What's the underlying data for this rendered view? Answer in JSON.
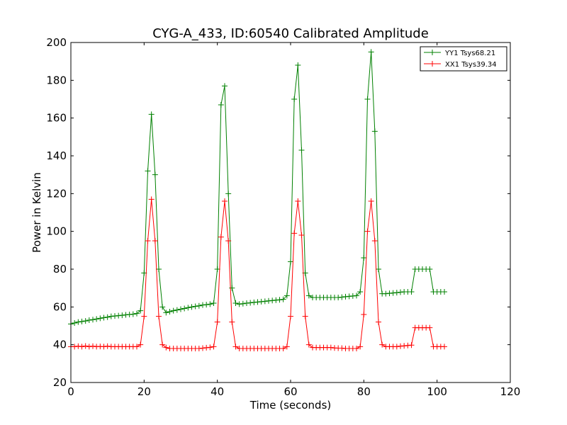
{
  "chart_data": {
    "type": "line",
    "title": "CYG-A_433, ID:60540 Calibrated Amplitude",
    "xlabel": "Time (seconds)",
    "ylabel": "Power in Kelvin",
    "xlim": [
      0,
      120
    ],
    "ylim": [
      20,
      200
    ],
    "xticks": [
      0,
      20,
      40,
      60,
      80,
      100,
      120
    ],
    "yticks": [
      20,
      40,
      60,
      80,
      100,
      120,
      140,
      160,
      180,
      200
    ],
    "grid": false,
    "legend_position": "top-right",
    "marker": "+",
    "series": [
      {
        "name": "YY1 Tsys68.21",
        "color": "#008000",
        "x": [
          0,
          1,
          2,
          3,
          4,
          5,
          6,
          7,
          8,
          9,
          10,
          11,
          12,
          13,
          14,
          15,
          16,
          17,
          18,
          19,
          20,
          21,
          22,
          23,
          24,
          25,
          26,
          27,
          28,
          29,
          30,
          31,
          32,
          33,
          34,
          35,
          36,
          37,
          38,
          39,
          40,
          41,
          42,
          43,
          44,
          45,
          46,
          47,
          48,
          49,
          50,
          51,
          52,
          53,
          54,
          55,
          56,
          57,
          58,
          59,
          60,
          61,
          62,
          63,
          64,
          65,
          66,
          67,
          68,
          69,
          70,
          71,
          72,
          73,
          74,
          75,
          76,
          77,
          78,
          79,
          80,
          81,
          82,
          83,
          84,
          85,
          86,
          87,
          88,
          89,
          90,
          91,
          92,
          93,
          94,
          95,
          96,
          97,
          98,
          99,
          100,
          101,
          102
        ],
        "y": [
          51,
          51.5,
          52,
          52.3,
          52.6,
          53,
          53.3,
          53.6,
          54,
          54.3,
          54.6,
          55,
          55.2,
          55.4,
          55.6,
          55.8,
          56,
          56.2,
          56.5,
          58,
          78,
          132,
          162,
          130,
          80,
          60,
          57,
          57.5,
          58,
          58.4,
          58.8,
          59.2,
          59.6,
          60,
          60.3,
          60.6,
          61,
          61.2,
          61.5,
          62,
          80,
          167,
          177,
          120,
          70,
          62,
          61.5,
          61.7,
          62,
          62.2,
          62.4,
          62.6,
          62.8,
          63,
          63.2,
          63.4,
          63.6,
          63.8,
          64,
          66,
          84,
          170,
          188,
          143,
          78,
          66,
          65,
          65,
          65,
          65,
          65,
          65,
          65,
          65,
          65.2,
          65.4,
          65.6,
          65.8,
          66,
          68,
          86,
          170,
          195,
          153,
          80,
          67,
          67,
          67.2,
          67.4,
          67.6,
          67.8,
          68,
          68,
          68,
          80,
          80,
          80,
          80,
          80,
          68,
          68,
          68,
          68
        ]
      },
      {
        "name": "XX1 Tsys39.34",
        "color": "#ff0000",
        "x": [
          0,
          1,
          2,
          3,
          4,
          5,
          6,
          7,
          8,
          9,
          10,
          11,
          12,
          13,
          14,
          15,
          16,
          17,
          18,
          19,
          20,
          21,
          22,
          23,
          24,
          25,
          26,
          27,
          28,
          29,
          30,
          31,
          32,
          33,
          34,
          35,
          36,
          37,
          38,
          39,
          40,
          41,
          42,
          43,
          44,
          45,
          46,
          47,
          48,
          49,
          50,
          51,
          52,
          53,
          54,
          55,
          56,
          57,
          58,
          59,
          60,
          61,
          62,
          63,
          64,
          65,
          66,
          67,
          68,
          69,
          70,
          71,
          72,
          73,
          74,
          75,
          76,
          77,
          78,
          79,
          80,
          81,
          82,
          83,
          84,
          85,
          86,
          87,
          88,
          89,
          90,
          91,
          92,
          93,
          94,
          95,
          96,
          97,
          98,
          99,
          100,
          101,
          102
        ],
        "y": [
          39,
          39,
          39.2,
          39,
          39.3,
          39,
          39.2,
          39,
          39.1,
          39,
          39.2,
          39,
          39,
          39,
          39,
          39,
          39,
          39,
          39,
          40,
          55,
          95,
          117,
          95,
          55,
          40,
          38.5,
          38,
          38,
          38,
          38,
          38,
          38,
          38,
          38,
          38,
          38.2,
          38.4,
          38.6,
          39,
          52,
          97,
          116,
          95,
          52,
          39,
          38,
          38,
          38,
          38,
          38,
          38,
          38,
          38,
          38,
          38,
          38,
          38,
          38,
          39,
          55,
          99,
          116,
          98,
          55,
          40,
          38.5,
          38.5,
          38.5,
          38.5,
          38.5,
          38.5,
          38.3,
          38.2,
          38.2,
          38,
          38,
          38,
          38,
          39,
          56,
          100,
          116,
          95,
          52,
          40,
          39,
          39,
          39,
          39,
          39.2,
          39.4,
          39.6,
          39.8,
          49,
          49,
          49,
          49,
          49,
          39,
          39,
          39,
          39
        ]
      }
    ]
  }
}
